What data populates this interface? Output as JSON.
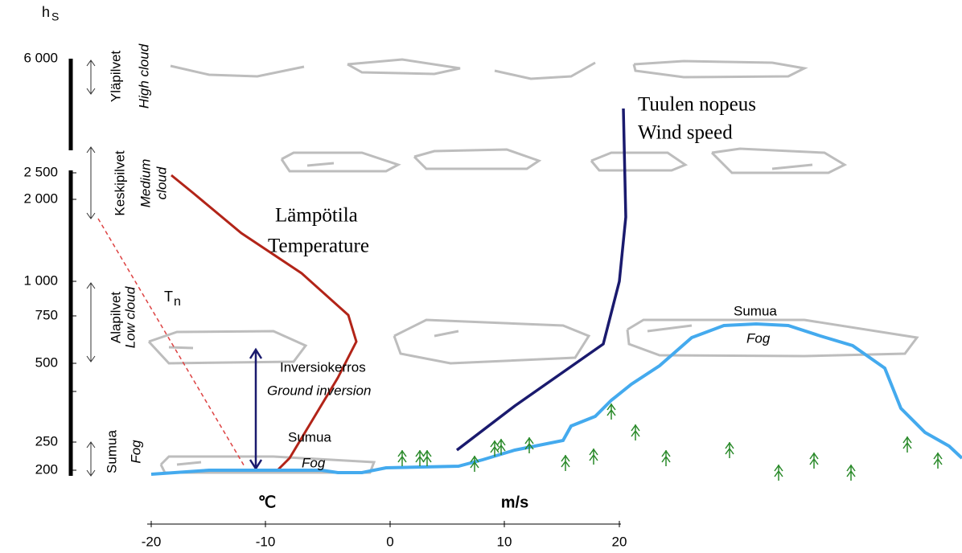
{
  "height_axis": {
    "symbol": "h",
    "subscript": "S",
    "ticks": [
      "6 000",
      "2 500",
      "2 000",
      "1 000",
      "750",
      "500",
      "250",
      "200"
    ]
  },
  "layers": [
    {
      "name": "Yläpilvet",
      "english": [
        "High cloud"
      ]
    },
    {
      "name": "Keskipilvet",
      "english": [
        "Medium",
        "cloud"
      ]
    },
    {
      "name": "Alapilvet",
      "english": [
        "Low cloud"
      ]
    },
    {
      "name": "Sumua",
      "english": [
        "Fog"
      ]
    }
  ],
  "annotations": {
    "wind": [
      "Tuulen nopeus",
      "Wind speed"
    ],
    "temperature": [
      "Lämpötila",
      "Temperature"
    ],
    "tn": {
      "symbol": "T",
      "subscript": "n"
    },
    "inversion": [
      "Inversiokerros",
      "Ground inversion"
    ],
    "fog_left": [
      "Sumua",
      "Fog"
    ],
    "fog_right": [
      "Sumua",
      "Fog"
    ]
  },
  "bottom_axis": {
    "units": [
      "℃",
      "m/s"
    ],
    "ticks": [
      "-20",
      "-10",
      "0",
      "10",
      "20"
    ]
  }
}
